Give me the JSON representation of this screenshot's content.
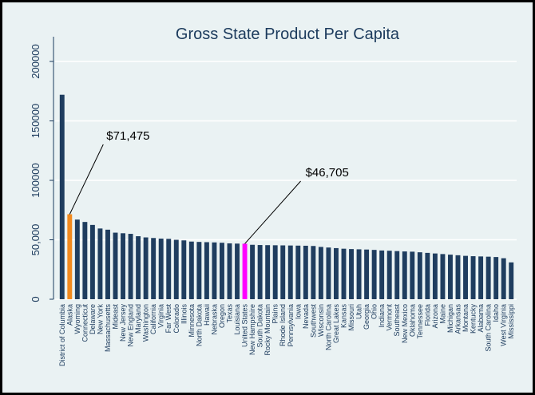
{
  "chart_data": {
    "type": "bar",
    "title": "Gross State Product Per Capita",
    "xlabel": "",
    "ylabel": "",
    "ylim": [
      0,
      200000
    ],
    "yticks": [
      0,
      50000,
      100000,
      150000,
      200000
    ],
    "ytick_labels": [
      "0",
      "50,000",
      "100000",
      "150000",
      "200000"
    ],
    "grid": true,
    "categories": [
      "District of Columbia",
      "Alaska",
      "Wyoming",
      "Connecticut",
      "Delaware",
      "New York",
      "Massachusetts",
      "Mideast",
      "New Jersey",
      "New England",
      "Maryland",
      "Washington",
      "California",
      "Virginia",
      "Far West",
      "Colorado",
      "Illinois",
      "Minnesota",
      "North Dakota",
      "Hawaii",
      "Nebraska",
      "Oregon",
      "Texas",
      "Louisiana",
      "United States",
      "New Hampshire",
      "South Dakota",
      "Rocky Mountain",
      "Plains",
      "Rhode Island",
      "Pennsylvania",
      "Iowa",
      "Nevada",
      "Southwest",
      "Wisconsin",
      "North Carolina",
      "Great Lakes",
      "Kansas",
      "Missouri",
      "Utah",
      "Georgia",
      "Ohio",
      "Indiana",
      "Vermont",
      "Southeast",
      "New Mexico",
      "Oklahoma",
      "Tennessee",
      "Florida",
      "Arizona",
      "Maine",
      "Michigan",
      "Arkansas",
      "Montana",
      "Kentucky",
      "Alabama",
      "South Carolina",
      "Idaho",
      "West Virginia",
      "Mississippi"
    ],
    "values": [
      172000,
      71475,
      67000,
      65000,
      62500,
      59500,
      58500,
      56000,
      55500,
      55000,
      53000,
      52000,
      51500,
      51000,
      50800,
      50000,
      49500,
      48500,
      48200,
      48000,
      47800,
      47500,
      47000,
      46800,
      46705,
      45800,
      45600,
      45500,
      45400,
      45300,
      45200,
      45100,
      45000,
      44800,
      44000,
      43500,
      43000,
      42500,
      42200,
      42000,
      41800,
      41500,
      41000,
      40800,
      40500,
      40200,
      40000,
      39500,
      39000,
      38500,
      38000,
      37500,
      37000,
      36500,
      36200,
      36000,
      35800,
      35500,
      34500,
      31000
    ],
    "highlights": [
      {
        "category": "Alaska",
        "color": "#f28a1e",
        "label_color": "#4fd96f"
      },
      {
        "category": "United States",
        "color": "#ff00ff",
        "label_color": "#4fd96f"
      }
    ],
    "bar_color": "#1f3d5f",
    "annotations": [
      {
        "text": "$71,475",
        "target": "Alaska",
        "value": 71475
      },
      {
        "text": "$46,705",
        "target": "United States",
        "value": 46705
      }
    ]
  }
}
